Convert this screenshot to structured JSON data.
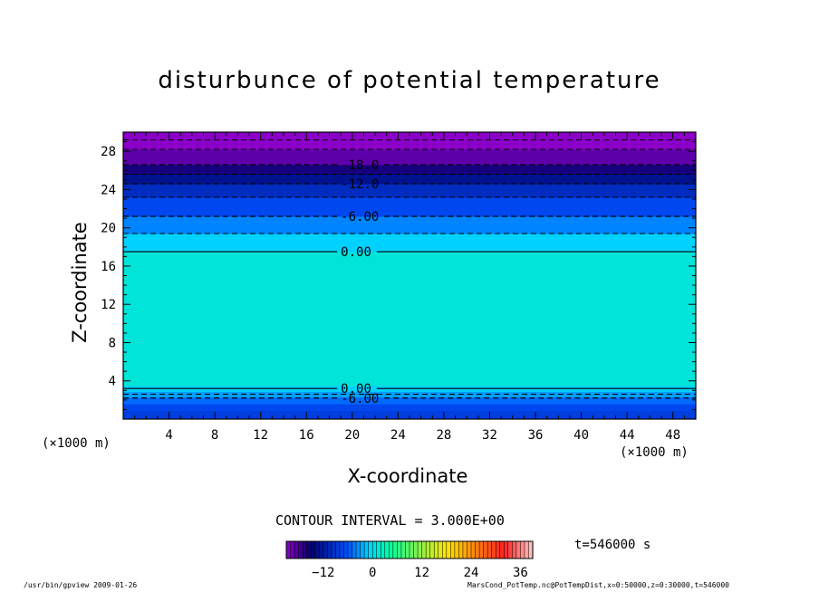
{
  "chart_data": {
    "type": "heatmap",
    "title": "disturbunce of potential temperature",
    "xlabel": "X-coordinate",
    "ylabel": "Z-coordinate",
    "x_unit": "(×1000 m)",
    "xlim": [
      0,
      50
    ],
    "ylim": [
      0,
      30
    ],
    "x_ticks": [
      4,
      8,
      12,
      16,
      20,
      24,
      28,
      32,
      36,
      40,
      44,
      48
    ],
    "y_ticks": [
      4,
      8,
      12,
      16,
      20,
      24,
      28
    ],
    "bands": [
      {
        "z0": 0.0,
        "z1": 0.9,
        "value": -8
      },
      {
        "z0": 0.9,
        "z1": 1.6,
        "value": -7
      },
      {
        "z0": 1.6,
        "z1": 2.3,
        "value": -5
      },
      {
        "z0": 2.3,
        "z1": 2.9,
        "value": -3
      },
      {
        "z0": 2.9,
        "z1": 3.5,
        "value": -1
      },
      {
        "z0": 3.5,
        "z1": 17.5,
        "value": 1
      },
      {
        "z0": 17.5,
        "z1": 19.4,
        "value": -1
      },
      {
        "z0": 19.4,
        "z1": 21.2,
        "value": -4
      },
      {
        "z0": 21.2,
        "z1": 23.2,
        "value": -7
      },
      {
        "z0": 23.2,
        "z1": 24.6,
        "value": -10
      },
      {
        "z0": 24.6,
        "z1": 25.6,
        "value": -13
      },
      {
        "z0": 25.6,
        "z1": 26.6,
        "value": -16
      },
      {
        "z0": 26.6,
        "z1": 28.2,
        "value": -19
      },
      {
        "z0": 28.2,
        "z1": 29.2,
        "value": -21
      },
      {
        "z0": 29.2,
        "z1": 30.0,
        "value": -23
      }
    ],
    "contours": [
      {
        "z": 3.2,
        "level": 0,
        "label": "0.00",
        "dashed": false,
        "label_x": 19.0
      },
      {
        "z": 2.2,
        "level": -6,
        "label": "-6.00",
        "dashed": true,
        "label_x": 19.0
      },
      {
        "z": 2.6,
        "level": -3,
        "dashed": true
      },
      {
        "z": 17.5,
        "level": 0,
        "label": "0.00",
        "dashed": false,
        "label_x": 19.0
      },
      {
        "z": 19.4,
        "level": -3,
        "dashed": true
      },
      {
        "z": 21.2,
        "level": -6,
        "label": "-6.00",
        "dashed": true,
        "label_x": 19.0
      },
      {
        "z": 23.2,
        "level": -9,
        "dashed": true
      },
      {
        "z": 24.6,
        "level": -12,
        "label": "-12.0",
        "dashed": true,
        "label_x": 19.0
      },
      {
        "z": 25.6,
        "level": -15,
        "dashed": true
      },
      {
        "z": 26.6,
        "level": -18,
        "label": "-18.0",
        "dashed": true,
        "label_x": 19.0
      },
      {
        "z": 28.2,
        "level": -21,
        "dashed": true
      },
      {
        "z": 29.2,
        "level": -24,
        "dashed": true
      }
    ],
    "colorbar": {
      "min": -21,
      "max": 39,
      "step": 1,
      "ticks": [
        -12,
        0,
        12,
        24,
        36
      ]
    }
  },
  "contour_interval": "CONTOUR INTERVAL = 3.000E+00",
  "time_label": "t=546000 s",
  "footer_left": "/usr/bin/gpview   2009-01-26",
  "footer_right": "MarsCond_PotTemp.nc@PotTempDist,x=0:50000,z=0:30000,t=546000",
  "colors": {
    "purple": "#8b00c8",
    "navy": "#00006e",
    "blue": "#0050ff",
    "cyan": "#00d2ff",
    "green": "#00ffa0",
    "yellow": "#ffe600",
    "red": "#ff2020",
    "pink": "#ffc8c8"
  }
}
